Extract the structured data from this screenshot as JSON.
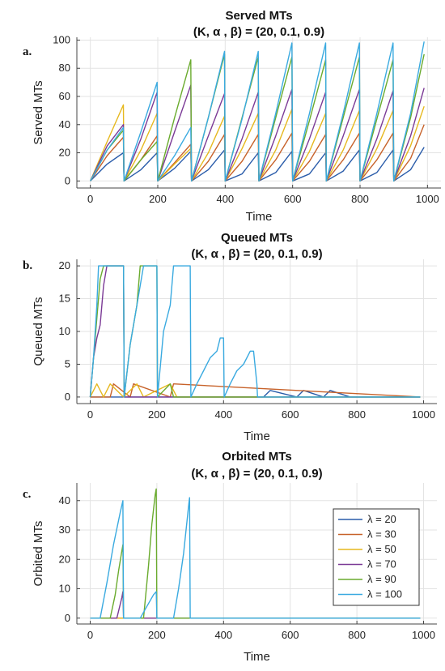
{
  "chart_data": [
    {
      "type": "line",
      "panel_label": "a.",
      "title": "Served MTs",
      "subtitle": "(K, α , β) =  (20, 0.1, 0.9)",
      "xlabel": "Time",
      "ylabel": "Served MTs",
      "xlim": [
        -40,
        1040
      ],
      "ylim": [
        -5,
        102
      ],
      "xticks": [
        0,
        200,
        400,
        600,
        800,
        1000
      ],
      "yticks": [
        0,
        20,
        40,
        60,
        80,
        100
      ],
      "grid": true,
      "series": [
        {
          "color": "#2a5caa",
          "x": [
            0,
            50,
            98,
            100,
            150,
            198,
            200,
            250,
            298,
            300,
            350,
            398,
            400,
            450,
            498,
            500,
            550,
            598,
            600,
            650,
            698,
            700,
            750,
            798,
            800,
            850,
            898,
            900,
            950,
            990
          ],
          "y": [
            0,
            12,
            20,
            0,
            8,
            20,
            0,
            9,
            21,
            0,
            8,
            22,
            0,
            5,
            20,
            0,
            6,
            21,
            0,
            5,
            20,
            0,
            7,
            22,
            0,
            6,
            22,
            0,
            8,
            24
          ]
        },
        {
          "color": "#c7622a",
          "x": [
            0,
            50,
            98,
            100,
            150,
            198,
            200,
            250,
            298,
            300,
            350,
            398,
            400,
            450,
            498,
            500,
            550,
            598,
            600,
            650,
            698,
            700,
            750,
            798,
            800,
            850,
            898,
            900,
            950,
            990
          ],
          "y": [
            0,
            18,
            31,
            0,
            15,
            32,
            0,
            13,
            26,
            0,
            14,
            33,
            0,
            14,
            33,
            0,
            15,
            34,
            0,
            14,
            33,
            0,
            15,
            34,
            0,
            15,
            34,
            0,
            16,
            40
          ]
        },
        {
          "color": "#e6b81e",
          "x": [
            0,
            50,
            98,
            100,
            150,
            198,
            200,
            250,
            298,
            300,
            350,
            398,
            400,
            450,
            498,
            500,
            550,
            598,
            600,
            650,
            698,
            700,
            750,
            798,
            800,
            850,
            898,
            900,
            950,
            990
          ],
          "y": [
            0,
            28,
            54,
            0,
            22,
            48,
            0,
            12,
            23,
            0,
            20,
            46,
            0,
            23,
            48,
            0,
            22,
            51,
            0,
            21,
            48,
            0,
            22,
            50,
            0,
            23,
            50,
            0,
            25,
            53
          ]
        },
        {
          "color": "#7b3a96",
          "x": [
            0,
            50,
            98,
            100,
            150,
            198,
            200,
            250,
            298,
            300,
            350,
            398,
            400,
            450,
            498,
            500,
            550,
            598,
            600,
            650,
            698,
            700,
            750,
            798,
            800,
            850,
            898,
            900,
            950,
            990
          ],
          "y": [
            0,
            25,
            40,
            0,
            30,
            63,
            0,
            35,
            68,
            0,
            32,
            62,
            0,
            30,
            63,
            0,
            32,
            65,
            0,
            30,
            63,
            0,
            32,
            65,
            0,
            30,
            64,
            0,
            32,
            66
          ]
        },
        {
          "color": "#6aab2e",
          "x": [
            0,
            50,
            98,
            100,
            150,
            198,
            200,
            250,
            298,
            300,
            350,
            398,
            400,
            450,
            498,
            500,
            550,
            598,
            600,
            650,
            698,
            700,
            750,
            798,
            800,
            850,
            898,
            900,
            950,
            990
          ],
          "y": [
            0,
            22,
            36,
            0,
            15,
            28,
            0,
            45,
            86,
            0,
            45,
            90,
            0,
            45,
            88,
            0,
            45,
            88,
            0,
            43,
            86,
            0,
            45,
            88,
            0,
            44,
            86,
            0,
            45,
            90
          ]
        },
        {
          "color": "#3aaae0",
          "x": [
            0,
            50,
            98,
            100,
            150,
            198,
            200,
            250,
            298,
            300,
            350,
            398,
            400,
            450,
            498,
            500,
            550,
            598,
            600,
            650,
            698,
            700,
            750,
            798,
            800,
            850,
            898,
            900,
            950,
            990
          ],
          "y": [
            0,
            22,
            38,
            0,
            35,
            70,
            0,
            18,
            38,
            0,
            45,
            92,
            0,
            44,
            92,
            0,
            48,
            98,
            0,
            48,
            98,
            0,
            48,
            98,
            0,
            48,
            98,
            0,
            48,
            99
          ]
        }
      ]
    },
    {
      "type": "line",
      "panel_label": "b.",
      "title": "Queued MTs",
      "subtitle": "(K, α , β) =  (20, 0.1, 0.9)",
      "xlabel": "Time",
      "ylabel": "Queued MTs",
      "xlim": [
        -40,
        1040
      ],
      "ylim": [
        -1,
        21
      ],
      "xticks": [
        0,
        200,
        400,
        600,
        800,
        1000
      ],
      "yticks": [
        0,
        5,
        10,
        15,
        20
      ],
      "grid": true,
      "series": [
        {
          "color": "#2a5caa",
          "x": [
            0,
            520,
            540,
            620,
            640,
            700,
            720,
            780,
            800,
            990
          ],
          "y": [
            0,
            0,
            1,
            0,
            1,
            0,
            1,
            0,
            0,
            0
          ]
        },
        {
          "color": "#c7622a",
          "x": [
            0,
            60,
            70,
            120,
            130,
            240,
            250,
            990
          ],
          "y": [
            0,
            0,
            2,
            0,
            2,
            0,
            2,
            0
          ]
        },
        {
          "color": "#e6b81e",
          "x": [
            0,
            20,
            40,
            60,
            100,
            140,
            160,
            240,
            260,
            990
          ],
          "y": [
            0,
            2,
            0,
            2,
            0,
            2,
            0,
            2,
            0,
            0
          ]
        },
        {
          "color": "#7b3a96",
          "x": [
            0,
            10,
            20,
            30,
            40,
            50,
            60,
            100,
            102,
            990
          ],
          "y": [
            0,
            6,
            9,
            11,
            17,
            20,
            20,
            20,
            0,
            0
          ]
        },
        {
          "color": "#6aab2e",
          "x": [
            0,
            10,
            20,
            30,
            40,
            50,
            100,
            102,
            120,
            140,
            150,
            160,
            200,
            202,
            240,
            250,
            990
          ],
          "y": [
            0,
            6,
            12,
            18,
            20,
            20,
            20,
            0,
            8,
            14,
            20,
            20,
            20,
            0,
            2,
            0,
            0
          ]
        },
        {
          "color": "#3aaae0",
          "x": [
            0,
            10,
            20,
            25,
            30,
            100,
            102,
            120,
            140,
            160,
            200,
            202,
            220,
            240,
            250,
            300,
            302,
            320,
            340,
            360,
            380,
            390,
            400,
            402,
            420,
            440,
            460,
            480,
            490,
            500,
            502,
            800,
            990
          ],
          "y": [
            0,
            6,
            14,
            20,
            20,
            20,
            0,
            8,
            14,
            20,
            20,
            0,
            10,
            14,
            20,
            20,
            0,
            2,
            4,
            6,
            7,
            9,
            9,
            0,
            2,
            4,
            5,
            7,
            7,
            2,
            0,
            0,
            0
          ]
        }
      ]
    },
    {
      "type": "line",
      "panel_label": "c.",
      "title": "Orbited MTs",
      "subtitle": "(K, α , β) =  (20, 0.1, 0.9)",
      "xlabel": "Time",
      "ylabel": "Orbited MTs",
      "xlim": [
        -40,
        1040
      ],
      "ylim": [
        -2,
        46
      ],
      "xticks": [
        0,
        200,
        400,
        600,
        800,
        1000
      ],
      "yticks": [
        0,
        10,
        20,
        30,
        40
      ],
      "grid": true,
      "legend_position": "right",
      "series": [
        {
          "name": "λ = 20",
          "color": "#2a5caa",
          "x": [
            0,
            990
          ],
          "y": [
            0,
            0
          ]
        },
        {
          "name": "λ = 30",
          "color": "#c7622a",
          "x": [
            0,
            990
          ],
          "y": [
            0,
            0
          ]
        },
        {
          "name": "λ = 50",
          "color": "#e6b81e",
          "x": [
            0,
            990
          ],
          "y": [
            0,
            0
          ]
        },
        {
          "name": "λ = 70",
          "color": "#7b3a96",
          "x": [
            0,
            80,
            95,
            98,
            100,
            990
          ],
          "y": [
            0,
            0,
            7,
            9,
            0,
            0
          ]
        },
        {
          "name": "λ = 90",
          "color": "#6aab2e",
          "x": [
            0,
            60,
            75,
            85,
            98,
            100,
            160,
            175,
            185,
            195,
            198,
            200,
            990
          ],
          "y": [
            0,
            0,
            8,
            16,
            25,
            0,
            0,
            18,
            32,
            42,
            44,
            0,
            0
          ]
        },
        {
          "name": "λ = 100",
          "color": "#3aaae0",
          "x": [
            0,
            30,
            50,
            70,
            90,
            98,
            100,
            150,
            170,
            190,
            198,
            200,
            250,
            265,
            280,
            296,
            298,
            300,
            990
          ],
          "y": [
            0,
            0,
            12,
            25,
            36,
            40,
            0,
            0,
            4,
            8,
            9,
            0,
            0,
            10,
            22,
            39,
            41,
            0,
            0
          ]
        }
      ]
    }
  ]
}
